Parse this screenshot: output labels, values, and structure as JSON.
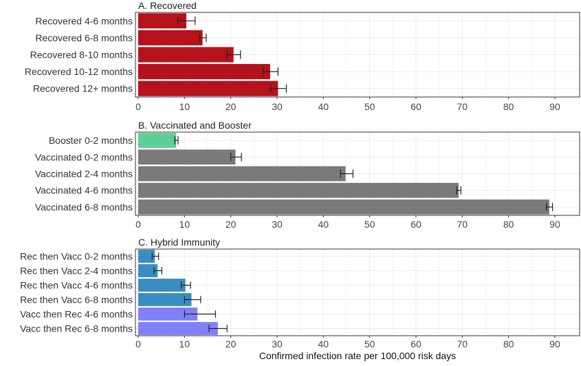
{
  "chart_data": [
    {
      "type": "bar",
      "orientation": "horizontal",
      "title": "A. Recovered",
      "categories": [
        "Recovered 4-6 months",
        "Recovered 6-8 months",
        "Recovered 8-10 months",
        "Recovered 10-12 months",
        "Recovered 12+ months"
      ],
      "values": [
        10.4,
        13.9,
        20.6,
        28.5,
        30.2
      ],
      "error_low": [
        8.6,
        13.3,
        19.2,
        27.0,
        28.6
      ],
      "error_high": [
        12.3,
        14.7,
        22.1,
        30.2,
        32.0
      ],
      "colors": [
        "#b5121b",
        "#b5121b",
        "#b5121b",
        "#b5121b",
        "#b5121b"
      ],
      "xlim": [
        0,
        90
      ],
      "xticks": [
        "0",
        "10",
        "20",
        "30",
        "40",
        "50",
        "60",
        "70",
        "80",
        "90"
      ],
      "grid": true
    },
    {
      "type": "bar",
      "orientation": "horizontal",
      "title": "B. Vaccinated and Booster",
      "categories": [
        "Booster 0-2 months",
        "Vaccinated 0-2 months",
        "Vaccinated 2-4 months",
        "Vaccinated 4-6 months",
        "Vaccinated 6-8 months"
      ],
      "values": [
        8.2,
        21.0,
        44.8,
        69.2,
        88.8
      ],
      "error_low": [
        7.9,
        20.0,
        43.7,
        68.8,
        88.2
      ],
      "error_high": [
        8.6,
        22.3,
        46.4,
        69.7,
        89.5
      ],
      "colors": [
        "#5fcf98",
        "#7a7a7a",
        "#7a7a7a",
        "#7a7a7a",
        "#7a7a7a"
      ],
      "xlim": [
        0,
        90
      ],
      "xticks": [
        "0",
        "10",
        "20",
        "30",
        "40",
        "50",
        "60",
        "70",
        "80",
        "90"
      ],
      "grid": true
    },
    {
      "type": "bar",
      "orientation": "horizontal",
      "title": "C. Hybrid Immunity",
      "categories": [
        "Rec then Vacc 0-2 months",
        "Rec then Vacc 2-4 months",
        "Rec then Vacc 4-6 months",
        "Rec then Vacc 6-8 months",
        "Vacc then Rec 4-6 months",
        "Vacc then Rec 6-8 months"
      ],
      "values": [
        3.6,
        4.2,
        10.2,
        11.5,
        12.8,
        17.2
      ],
      "error_low": [
        3.0,
        3.4,
        9.3,
        10.0,
        10.0,
        15.3
      ],
      "error_high": [
        4.4,
        5.1,
        11.3,
        13.5,
        16.7,
        19.2
      ],
      "colors": [
        "#3a8dc1",
        "#3a8dc1",
        "#3a8dc1",
        "#3a8dc1",
        "#8080f8",
        "#8080f8"
      ],
      "xlim": [
        0,
        90
      ],
      "xticks": [
        "0",
        "10",
        "20",
        "30",
        "40",
        "50",
        "60",
        "70",
        "80",
        "90"
      ],
      "xlabel": "Confirmed infection rate per 100,000 risk days",
      "grid": true
    }
  ]
}
